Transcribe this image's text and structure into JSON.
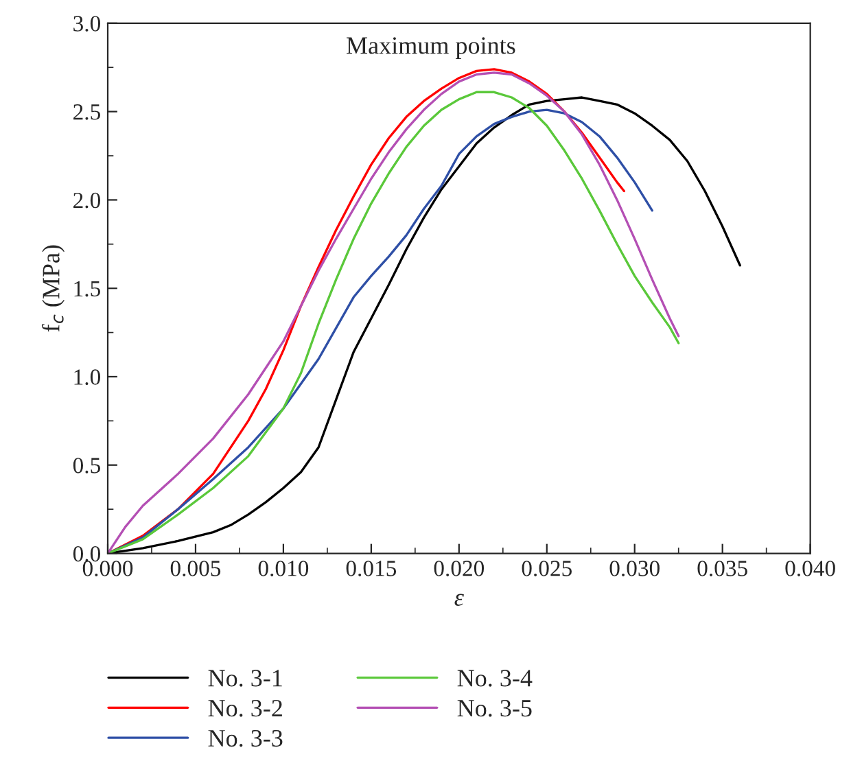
{
  "chart_data": {
    "type": "line",
    "xlabel": "ε",
    "ylabel": "f$_{c}$ (MPa)",
    "annotations": [
      "Maximum points"
    ],
    "xlim": [
      0,
      0.04
    ],
    "ylim": [
      0,
      3.0
    ],
    "xticks": [
      {
        "value": 0,
        "label": "0.000"
      },
      {
        "value": 0.005,
        "label": "0.005"
      },
      {
        "value": 0.01,
        "label": "0.010"
      },
      {
        "value": 0.015,
        "label": "0.015"
      },
      {
        "value": 0.02,
        "label": "0.020"
      },
      {
        "value": 0.025,
        "label": "0.025"
      },
      {
        "value": 0.03,
        "label": "0.030"
      },
      {
        "value": 0.035,
        "label": "0.035"
      },
      {
        "value": 0.04,
        "label": "0.040"
      }
    ],
    "yticks": [
      {
        "value": 0,
        "label": "0.0"
      },
      {
        "value": 0.5,
        "label": "0.5"
      },
      {
        "value": 1.0,
        "label": "1.0"
      },
      {
        "value": 1.5,
        "label": "1.5"
      },
      {
        "value": 2.0,
        "label": "2.0"
      },
      {
        "value": 2.5,
        "label": "2.5"
      },
      {
        "value": 3.0,
        "label": "3.0"
      }
    ],
    "grid": false,
    "legend": "bottom",
    "marker": "none",
    "line_style": "solid",
    "series": [
      {
        "name": "No. 3-1",
        "color": "#000000",
        "x": [
          0,
          0.002,
          0.004,
          0.006,
          0.007,
          0.008,
          0.009,
          0.01,
          0.011,
          0.012,
          0.013,
          0.014,
          0.015,
          0.016,
          0.017,
          0.018,
          0.019,
          0.02,
          0.021,
          0.022,
          0.023,
          0.024,
          0.025,
          0.026,
          0.027,
          0.028,
          0.029,
          0.03,
          0.031,
          0.032,
          0.033,
          0.034,
          0.035,
          0.036
        ],
        "values": [
          0,
          0.03,
          0.07,
          0.12,
          0.16,
          0.22,
          0.29,
          0.37,
          0.46,
          0.6,
          0.87,
          1.14,
          1.33,
          1.52,
          1.72,
          1.9,
          2.06,
          2.19,
          2.32,
          2.41,
          2.48,
          2.54,
          2.56,
          2.57,
          2.58,
          2.56,
          2.54,
          2.49,
          2.42,
          2.34,
          2.22,
          2.05,
          1.85,
          1.63
        ]
      },
      {
        "name": "No. 3-2",
        "color": "#ff0000",
        "x": [
          0,
          0.002,
          0.004,
          0.006,
          0.008,
          0.009,
          0.01,
          0.011,
          0.012,
          0.013,
          0.014,
          0.015,
          0.016,
          0.017,
          0.018,
          0.019,
          0.02,
          0.021,
          0.022,
          0.023,
          0.024,
          0.025,
          0.026,
          0.027,
          0.028,
          0.029,
          0.0294
        ],
        "values": [
          0,
          0.1,
          0.25,
          0.45,
          0.75,
          0.93,
          1.15,
          1.4,
          1.62,
          1.83,
          2.02,
          2.2,
          2.35,
          2.47,
          2.56,
          2.63,
          2.69,
          2.73,
          2.74,
          2.72,
          2.67,
          2.6,
          2.5,
          2.38,
          2.24,
          2.1,
          2.05
        ]
      },
      {
        "name": "No. 3-3",
        "color": "#2e4fa6",
        "x": [
          0,
          0.002,
          0.004,
          0.006,
          0.008,
          0.01,
          0.012,
          0.014,
          0.015,
          0.016,
          0.017,
          0.018,
          0.019,
          0.02,
          0.021,
          0.022,
          0.023,
          0.024,
          0.025,
          0.026,
          0.027,
          0.028,
          0.029,
          0.03,
          0.031
        ],
        "values": [
          0,
          0.09,
          0.25,
          0.42,
          0.6,
          0.82,
          1.1,
          1.45,
          1.57,
          1.68,
          1.8,
          1.95,
          2.08,
          2.26,
          2.36,
          2.43,
          2.47,
          2.5,
          2.51,
          2.49,
          2.44,
          2.36,
          2.24,
          2.1,
          1.94
        ]
      },
      {
        "name": "No. 3-4",
        "color": "#5ac83a",
        "x": [
          0,
          0.002,
          0.004,
          0.006,
          0.008,
          0.01,
          0.011,
          0.012,
          0.013,
          0.014,
          0.015,
          0.016,
          0.017,
          0.018,
          0.019,
          0.02,
          0.021,
          0.022,
          0.023,
          0.024,
          0.025,
          0.026,
          0.027,
          0.028,
          0.029,
          0.03,
          0.031,
          0.032,
          0.0325
        ],
        "values": [
          0,
          0.08,
          0.22,
          0.37,
          0.55,
          0.82,
          1.02,
          1.3,
          1.55,
          1.78,
          1.98,
          2.15,
          2.3,
          2.42,
          2.51,
          2.57,
          2.61,
          2.61,
          2.58,
          2.52,
          2.42,
          2.28,
          2.12,
          1.94,
          1.75,
          1.57,
          1.42,
          1.28,
          1.19
        ]
      },
      {
        "name": "No. 3-5",
        "color": "#b44fb4",
        "x": [
          0,
          0.001,
          0.002,
          0.004,
          0.006,
          0.008,
          0.01,
          0.011,
          0.012,
          0.013,
          0.014,
          0.015,
          0.016,
          0.017,
          0.018,
          0.019,
          0.02,
          0.021,
          0.022,
          0.023,
          0.024,
          0.025,
          0.026,
          0.027,
          0.028,
          0.029,
          0.03,
          0.031,
          0.032,
          0.0325
        ],
        "values": [
          0,
          0.15,
          0.27,
          0.45,
          0.65,
          0.9,
          1.2,
          1.4,
          1.6,
          1.78,
          1.95,
          2.12,
          2.27,
          2.4,
          2.51,
          2.6,
          2.67,
          2.71,
          2.72,
          2.71,
          2.66,
          2.59,
          2.5,
          2.37,
          2.2,
          2.0,
          1.78,
          1.55,
          1.33,
          1.23
        ]
      }
    ]
  }
}
